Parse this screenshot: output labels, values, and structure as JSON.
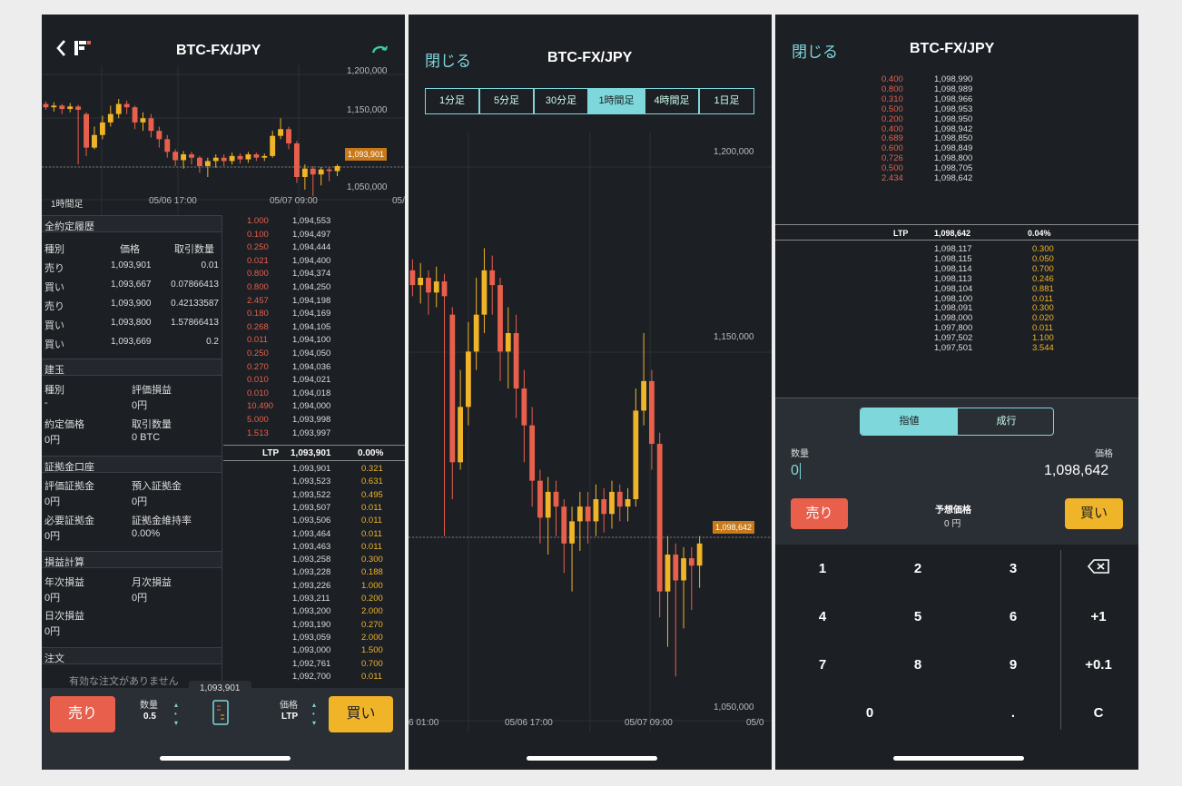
{
  "colors": {
    "bg": "#1c1f24",
    "sell": "#e8604c",
    "buy": "#f0b429",
    "accent": "#7ed7da",
    "grid": "#2c3036"
  },
  "p1": {
    "title": "BTC-FX/JPY",
    "back_icon": "chevron-left-icon",
    "logo_icon": "bitflyer-logo-icon",
    "refresh_icon": "refresh-icon",
    "chart": {
      "y_labels": [
        "1,200,000",
        "1,150,000",
        "1,050,000"
      ],
      "last_price": "1,093,901",
      "timeframe": "1時間足",
      "x_labels": [
        "05/06 17:00",
        "05/07 09:00",
        "05/"
      ]
    },
    "trades": {
      "title": "全約定履歴",
      "headers": [
        "種別",
        "価格",
        "取引数量"
      ],
      "rows": [
        [
          "売り",
          "1,093,901",
          "0.01"
        ],
        [
          "買い",
          "1,093,667",
          "0.07866413"
        ],
        [
          "売り",
          "1,093,900",
          "0.42133587"
        ],
        [
          "買い",
          "1,093,800",
          "1.57866413"
        ],
        [
          "買い",
          "1,093,669",
          "0.2"
        ]
      ]
    },
    "position": {
      "title": "建玉",
      "type_label": "種別",
      "type_value": "-",
      "pl_label": "評価損益",
      "pl_value": "0円",
      "price_label": "約定価格",
      "price_value": "0円",
      "qty_label": "取引数量",
      "qty_value": "0 BTC"
    },
    "margin": {
      "title": "証拠金口座",
      "eval_label": "評価証拠金",
      "eval_value": "0円",
      "dep_label": "預入証拠金",
      "dep_value": "0円",
      "req_label": "必要証拠金",
      "req_value": "0円",
      "ratio_label": "証拠金維持率",
      "ratio_value": "0.00%"
    },
    "pnl": {
      "title": "損益計算",
      "year_label": "年次損益",
      "year_value": "0円",
      "month_label": "月次損益",
      "month_value": "0円",
      "day_label": "日次損益",
      "day_value": "0円"
    },
    "orders": {
      "title": "注文",
      "empty": "有効な注文がありません"
    },
    "ob_asks": [
      [
        "1.000",
        "1,094,553"
      ],
      [
        "0.100",
        "1,094,497"
      ],
      [
        "0.250",
        "1,094,444"
      ],
      [
        "0.021",
        "1,094,400"
      ],
      [
        "0.800",
        "1,094,374"
      ],
      [
        "0.800",
        "1,094,250"
      ],
      [
        "2.457",
        "1,094,198"
      ],
      [
        "0.180",
        "1,094,169"
      ],
      [
        "0.268",
        "1,094,105"
      ],
      [
        "0.011",
        "1,094,100"
      ],
      [
        "0.250",
        "1,094,050"
      ],
      [
        "0.270",
        "1,094,036"
      ],
      [
        "0.010",
        "1,094,021"
      ],
      [
        "0.010",
        "1,094,018"
      ],
      [
        "10.490",
        "1,094,000"
      ],
      [
        "5.000",
        "1,093,998"
      ],
      [
        "1.513",
        "1,093,997"
      ]
    ],
    "ltp": {
      "label": "LTP",
      "price": "1,093,901",
      "change": "0.00%"
    },
    "ob_bids": [
      [
        "1,093,901",
        "0.321"
      ],
      [
        "1,093,523",
        "0.631"
      ],
      [
        "1,093,522",
        "0.495"
      ],
      [
        "1,093,507",
        "0.011"
      ],
      [
        "1,093,506",
        "0.011"
      ],
      [
        "1,093,464",
        "0.011"
      ],
      [
        "1,093,463",
        "0.011"
      ],
      [
        "1,093,258",
        "0.300"
      ],
      [
        "1,093,228",
        "0.188"
      ],
      [
        "1,093,226",
        "1.000"
      ],
      [
        "1,093,211",
        "0.200"
      ],
      [
        "1,093,200",
        "2.000"
      ],
      [
        "1,093,190",
        "0.270"
      ],
      [
        "1,093,059",
        "2.000"
      ],
      [
        "1,093,000",
        "1.500"
      ],
      [
        "1,092,761",
        "0.700"
      ],
      [
        "1,092,700",
        "0.011"
      ]
    ],
    "bottom": {
      "sell": "売り",
      "qty_label": "数量",
      "qty_value": "0.5",
      "price_label": "価格",
      "price_value": "LTP",
      "buy": "買い",
      "tooltip": "1,093,901"
    }
  },
  "p2": {
    "close": "閉じる",
    "title": "BTC-FX/JPY",
    "timeframes": [
      "1分足",
      "5分足",
      "30分足",
      "1時間足",
      "4時間足",
      "1日足"
    ],
    "selected_timeframe": "1時間足",
    "y_labels": [
      "1,200,000",
      "1,150,000",
      "1,050,000"
    ],
    "last_price": "1,098,642",
    "x_labels": [
      "6 01:00",
      "05/06 17:00",
      "05/07 09:00",
      "05/0"
    ]
  },
  "p3": {
    "close": "閉じる",
    "title": "BTC-FX/JPY",
    "asks": [
      [
        "0.400",
        "1,098,990"
      ],
      [
        "0.800",
        "1,098,989"
      ],
      [
        "0.310",
        "1,098,966"
      ],
      [
        "0.500",
        "1,098,953"
      ],
      [
        "0.200",
        "1,098,950"
      ],
      [
        "0.400",
        "1,098,942"
      ],
      [
        "0.689",
        "1,098,850"
      ],
      [
        "0.600",
        "1,098,849"
      ],
      [
        "0.726",
        "1,098,800"
      ],
      [
        "0.500",
        "1,098,705"
      ],
      [
        "2.434",
        "1,098,642"
      ]
    ],
    "ltp": {
      "label": "LTP",
      "price": "1,098,642",
      "change": "0.04%"
    },
    "bids": [
      [
        "1,098,117",
        "0.300"
      ],
      [
        "1,098,115",
        "0.050"
      ],
      [
        "1,098,114",
        "0.700"
      ],
      [
        "1,098,113",
        "0.246"
      ],
      [
        "1,098,104",
        "0.881"
      ],
      [
        "1,098,100",
        "0.011"
      ],
      [
        "1,098,091",
        "0.300"
      ],
      [
        "1,098,000",
        "0.020"
      ],
      [
        "1,097,800",
        "0.011"
      ],
      [
        "1,097,502",
        "1.100"
      ],
      [
        "1,097,501",
        "3.544"
      ]
    ],
    "order_type_tabs": [
      "指値",
      "成行"
    ],
    "selected_order_type": "指値",
    "qty_label": "数量",
    "qty_value": "0",
    "price_label": "価格",
    "price_value": "1,098,642",
    "sell": "売り",
    "est_label": "予想価格",
    "est_value": "0 円",
    "buy": "買い",
    "keypad": [
      "1",
      "2",
      "3",
      "4",
      "5",
      "6",
      "+1",
      "7",
      "8",
      "9",
      "+0.1",
      "0",
      ".",
      "C"
    ],
    "backspace_icon": "backspace-icon"
  }
}
